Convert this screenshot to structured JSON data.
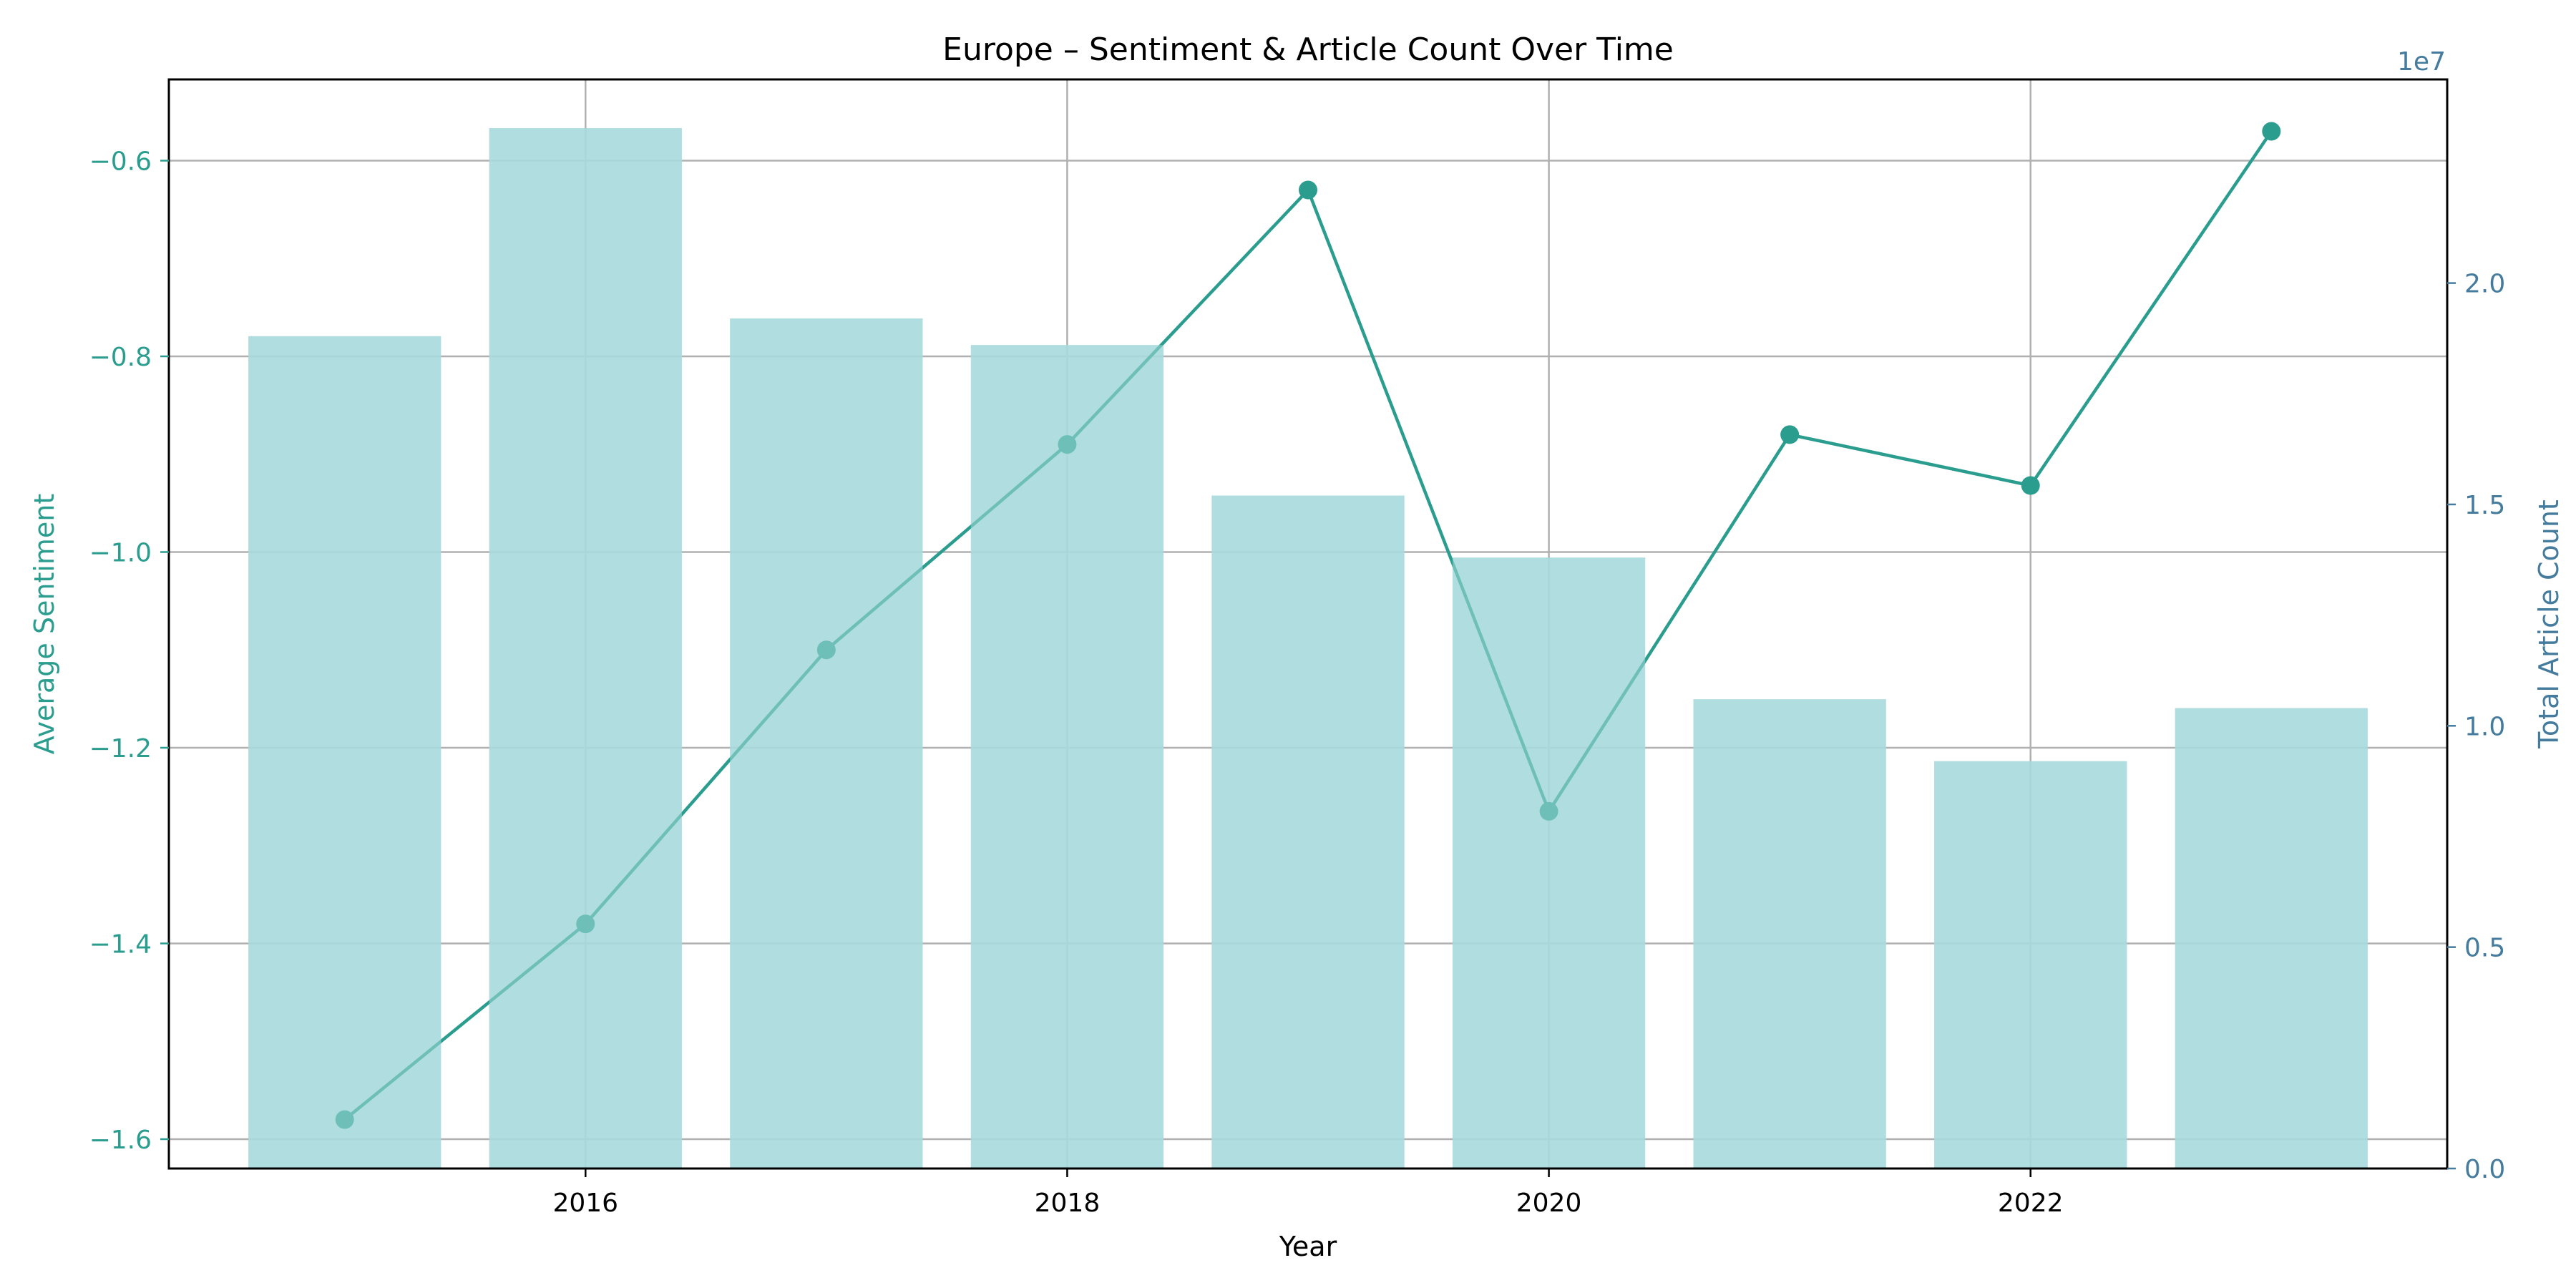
{
  "chart_data": {
    "type": "bar+line",
    "title": "Europe – Sentiment & Article Count Over Time",
    "xlabel": "Year",
    "ylabel_left": "Average Sentiment",
    "ylabel_right": "Total Article Count",
    "right_axis_multiplier": "1e7",
    "x": [
      2015,
      2016,
      2017,
      2018,
      2019,
      2020,
      2021,
      2022,
      2023
    ],
    "x_ticks": [
      2016,
      2018,
      2020,
      2022
    ],
    "x_tick_labels": [
      "2016",
      "2018",
      "2020",
      "2022"
    ],
    "xlim": [
      2014.27,
      2023.73
    ],
    "ylim_left": [
      -1.63,
      -0.517
    ],
    "ylim_right": [
      0,
      24600000
    ],
    "y_ticks_left": [
      -1.6,
      -1.4,
      -1.2,
      -1.0,
      -0.8,
      -0.6
    ],
    "y_tick_labels_left": [
      "−1.6",
      "−1.4",
      "−1.2",
      "−1.0",
      "−0.8",
      "−0.6"
    ],
    "y_ticks_right": [
      0,
      5000000,
      10000000,
      15000000,
      20000000
    ],
    "y_tick_labels_right": [
      "0.0",
      "0.5",
      "1.0",
      "1.5",
      "2.0"
    ],
    "grid": true,
    "series": [
      {
        "type": "bar",
        "axis": "right",
        "values": [
          18800000,
          23500000,
          19200000,
          18600000,
          15200000,
          13800000,
          10600000,
          9200000,
          10400000
        ]
      },
      {
        "type": "line",
        "axis": "left",
        "values": [
          -1.58,
          -1.38,
          -1.1,
          -0.89,
          -0.63,
          -1.265,
          -0.88,
          -0.932,
          -0.57
        ]
      }
    ]
  },
  "colors": {
    "line": "#2a9d8f",
    "bar": "#a8dadc",
    "left_axis": "#2a9d8f",
    "right_axis": "#457b9d",
    "grid": "#b0b0b0"
  }
}
